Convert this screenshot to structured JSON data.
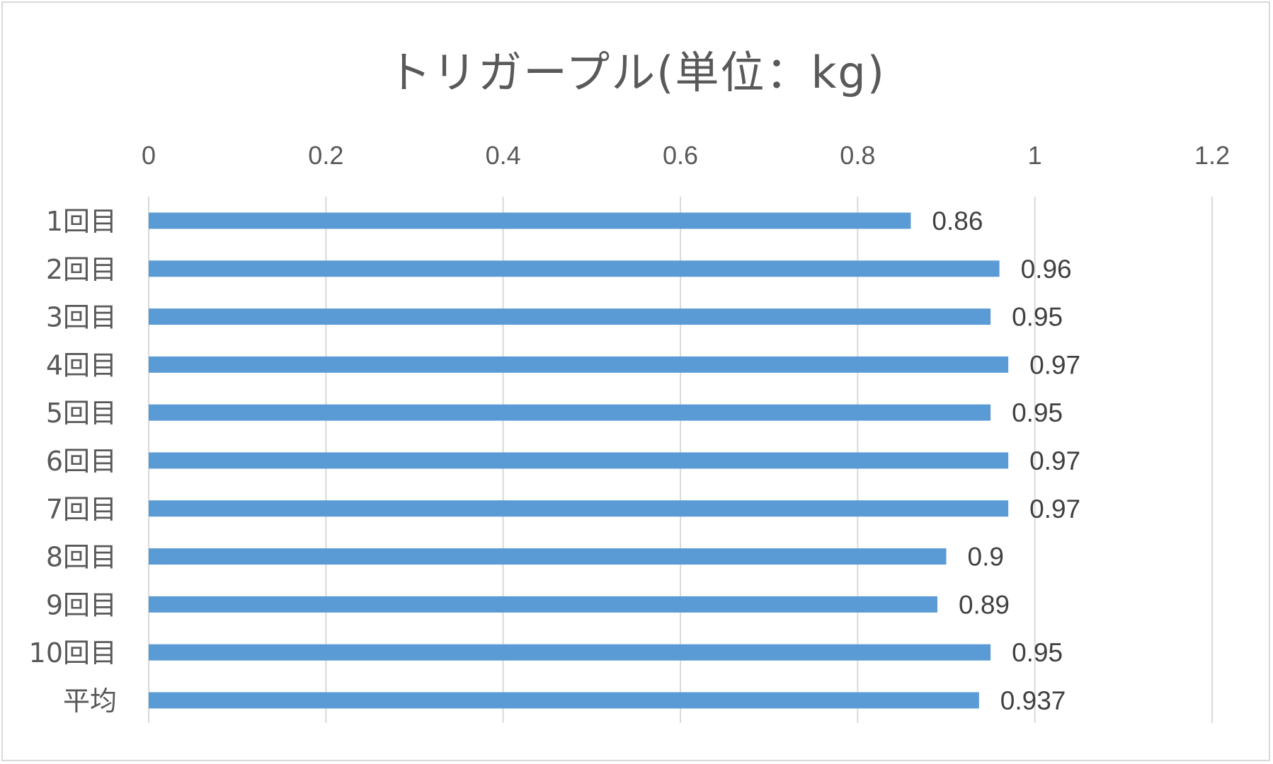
{
  "chart_data": {
    "type": "bar",
    "orientation": "horizontal",
    "title": "トリガープル(単位：kg)",
    "categories": [
      "1回目",
      "2回目",
      "3回目",
      "4回目",
      "5回目",
      "6回目",
      "7回目",
      "8回目",
      "9回目",
      "10回目",
      "平均"
    ],
    "values": [
      0.86,
      0.96,
      0.95,
      0.97,
      0.95,
      0.97,
      0.97,
      0.9,
      0.89,
      0.95,
      0.937
    ],
    "data_labels": [
      "0.86",
      "0.96",
      "0.95",
      "0.97",
      "0.95",
      "0.97",
      "0.97",
      "0.9",
      "0.89",
      "0.95",
      "0.937"
    ],
    "xlim": [
      0,
      1.2
    ],
    "x_ticks": [
      "0",
      "0.2",
      "0.4",
      "0.6",
      "0.8",
      "1",
      "1.2"
    ],
    "x_axis_position": "top",
    "grid": true,
    "legend": "none",
    "colors": {
      "bar": "#5b9bd5",
      "grid": "#d9d9d9",
      "text": "#595959",
      "label": "#404040"
    }
  }
}
